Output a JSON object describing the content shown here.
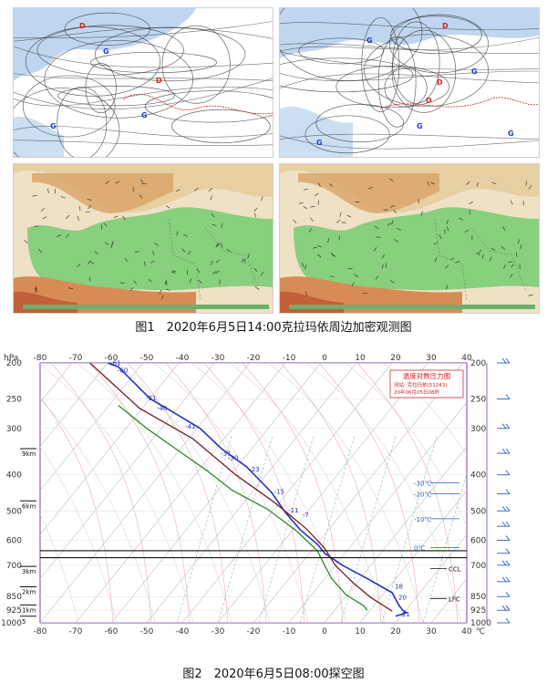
{
  "figure1": {
    "caption": "图1　2020年6月5日14:00克拉玛依周边加密观测图",
    "panels": [
      {
        "name": "upper-left-pressure-map",
        "high_markers": [
          "G",
          "G",
          "G"
        ],
        "low_markers": [
          "D",
          "D"
        ]
      },
      {
        "name": "upper-right-pressure-map",
        "high_markers": [
          "G",
          "G",
          "G",
          "G",
          "G"
        ],
        "low_markers": [
          "D",
          "D",
          "D"
        ]
      },
      {
        "name": "lower-left-station-map"
      },
      {
        "name": "lower-right-station-map"
      }
    ]
  },
  "figure2": {
    "caption": "图2　2020年6月5日08:00探空图",
    "chart_data": {
      "type": "line",
      "title": "温度对数压力图",
      "subtitle_station": "测站: 克拉玛依(51243)",
      "subtitle_time": "20年06月05日08时",
      "xlabel": "℃",
      "ylabel": "hPa",
      "x_ticks": [
        -80,
        -70,
        -60,
        -50,
        -40,
        -30,
        -20,
        -10,
        0,
        10,
        20,
        30,
        40
      ],
      "y_ticks": [
        200,
        250,
        300,
        400,
        500,
        600,
        700,
        850,
        925,
        1000
      ],
      "xlim": [
        -80,
        40
      ],
      "ylim": [
        1000,
        200
      ],
      "height_labels": [
        {
          "p": 340,
          "label": "9km"
        },
        {
          "p": 470,
          "label": "6km"
        },
        {
          "p": 705,
          "label": "3km"
        },
        {
          "p": 800,
          "label": "2km"
        },
        {
          "p": 895,
          "label": "1km"
        },
        {
          "p": 960,
          "label": "5"
        }
      ],
      "right_scale_labels": [
        {
          "p": 420,
          "label": "-30℃"
        },
        {
          "p": 450,
          "label": "-20℃"
        },
        {
          "p": 525,
          "label": "-10℃"
        },
        {
          "p": 628,
          "label": "0℃"
        }
      ],
      "annotations": [
        {
          "p": 715,
          "label": "CCL"
        },
        {
          "p": 860,
          "label": "LFC"
        }
      ],
      "level_lines_p": [
        640,
        668
      ],
      "series": [
        {
          "kind": "temperature",
          "color": "#2233bb",
          "points": [
            [
              -61,
              200
            ],
            [
              -58,
              205
            ],
            [
              -49,
              250
            ],
            [
              -43,
              270
            ],
            [
              -35,
              300
            ],
            [
              -29,
              340
            ],
            [
              -22,
              380
            ],
            [
              -15,
              445
            ],
            [
              -11,
              505
            ],
            [
              -7,
              560
            ],
            [
              -2,
              615
            ],
            [
              0,
              650
            ],
            [
              5,
              700
            ],
            [
              12,
              760
            ],
            [
              19,
              830
            ],
            [
              21,
              900
            ],
            [
              22,
              925
            ],
            [
              23,
              940
            ],
            [
              20,
              960
            ]
          ]
        },
        {
          "kind": "state_curve",
          "color": "#7a1e1e",
          "points": [
            [
              -66,
              200
            ],
            [
              -52,
              265
            ],
            [
              -37,
              320
            ],
            [
              -25,
              400
            ],
            [
              -14,
              475
            ],
            [
              -5,
              560
            ],
            [
              0,
              630
            ],
            [
              3,
              700
            ],
            [
              8,
              780
            ],
            [
              13,
              855
            ],
            [
              19,
              930
            ]
          ]
        },
        {
          "kind": "dewpoint",
          "color": "#2a8a2a",
          "points": [
            [
              -58,
              260
            ],
            [
              -50,
              300
            ],
            [
              -41,
              345
            ],
            [
              -33,
              390
            ],
            [
              -26,
              440
            ],
            [
              -16,
              495
            ],
            [
              -8,
              565
            ],
            [
              -2,
              640
            ],
            [
              0,
              700
            ],
            [
              2,
              760
            ],
            [
              6,
              840
            ],
            [
              11,
              900
            ],
            [
              12,
              925
            ]
          ]
        }
      ],
      "point_labels": [
        {
          "t": -61,
          "p": 203,
          "label": "-61"
        },
        {
          "t": -59,
          "p": 212,
          "label": "-60"
        },
        {
          "t": -51,
          "p": 252,
          "label": "-51"
        },
        {
          "t": -48,
          "p": 268,
          "label": "-48"
        },
        {
          "t": -40,
          "p": 300,
          "label": "-41"
        },
        {
          "t": -30,
          "p": 355,
          "label": "-31"
        },
        {
          "t": -28,
          "p": 365,
          "label": "-30"
        },
        {
          "t": -22,
          "p": 392,
          "label": "-23"
        },
        {
          "t": -15,
          "p": 450,
          "label": "-15"
        },
        {
          "t": -11,
          "p": 505,
          "label": "-11"
        },
        {
          "t": -7,
          "p": 520,
          "label": "-7"
        },
        {
          "t": 19,
          "p": 810,
          "label": "18"
        },
        {
          "t": 20,
          "p": 865,
          "label": "20"
        },
        {
          "t": 21,
          "p": 960,
          "label": "21"
        }
      ]
    }
  }
}
